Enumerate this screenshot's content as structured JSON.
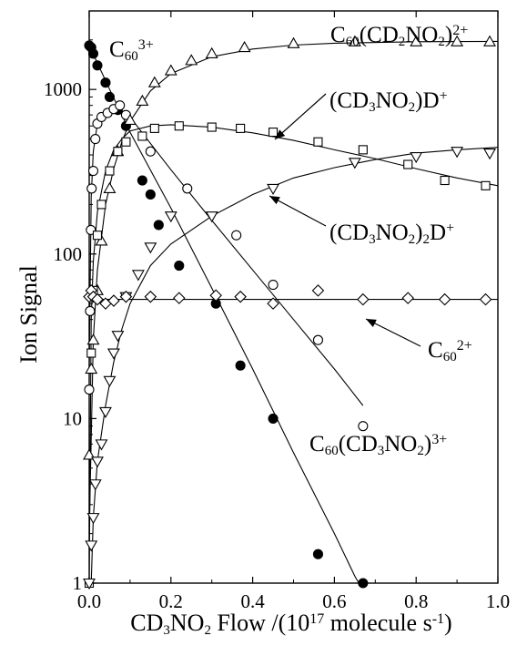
{
  "chart_data": {
    "type": "scatter",
    "title": "",
    "xlabel": "CD₃NO₂ Flow /(10¹⁷ molecule s⁻¹)",
    "ylabel": "Ion Signal",
    "xlim": [
      0,
      1.0
    ],
    "ylim": [
      1,
      3000
    ],
    "y_scale": "log",
    "grid": false,
    "x_ticks": [
      "0.0",
      "0.2",
      "0.4",
      "0.6",
      "0.8",
      "1.0"
    ],
    "y_ticks": [
      "1",
      "10",
      "100",
      "1000"
    ],
    "series": [
      {
        "name": "C60 3+",
        "marker": "filled-circle",
        "label_parts": [
          [
            "C",
            ""
          ],
          [
            "60",
            "sub"
          ],
          [
            "3+",
            "sup"
          ]
        ],
        "points": [
          [
            0.0,
            1850
          ],
          [
            0.005,
            1800
          ],
          [
            0.01,
            1650
          ],
          [
            0.02,
            1400
          ],
          [
            0.04,
            1100
          ],
          [
            0.05,
            900
          ],
          [
            0.07,
            750
          ],
          [
            0.09,
            600
          ],
          [
            0.13,
            280
          ],
          [
            0.15,
            230
          ],
          [
            0.17,
            150
          ],
          [
            0.22,
            85
          ],
          [
            0.31,
            50
          ],
          [
            0.37,
            21
          ],
          [
            0.45,
            10
          ],
          [
            0.56,
            1.5
          ],
          [
            0.67,
            1.0
          ]
        ],
        "fit": [
          [
            0.0,
            1850
          ],
          [
            0.05,
            1000
          ],
          [
            0.1,
            550
          ],
          [
            0.2,
            190
          ],
          [
            0.3,
            62
          ],
          [
            0.4,
            20
          ],
          [
            0.5,
            6.2
          ],
          [
            0.6,
            2.0
          ],
          [
            0.65,
            1.1
          ],
          [
            0.66,
            1.0
          ]
        ]
      },
      {
        "name": "C60(CD3NO2) 3+",
        "marker": "open-circle",
        "label_parts": [
          [
            "C",
            ""
          ],
          [
            "60",
            "sub"
          ],
          [
            "(CD",
            ""
          ],
          [
            "3",
            "sub"
          ],
          [
            "NO",
            ""
          ],
          [
            "2",
            "sub"
          ],
          [
            ")",
            ""
          ],
          [
            "3+",
            "sup"
          ]
        ],
        "points": [
          [
            0.0,
            15
          ],
          [
            0.002,
            45
          ],
          [
            0.004,
            140
          ],
          [
            0.006,
            250
          ],
          [
            0.01,
            320
          ],
          [
            0.015,
            500
          ],
          [
            0.02,
            620
          ],
          [
            0.03,
            680
          ],
          [
            0.045,
            720
          ],
          [
            0.06,
            760
          ],
          [
            0.075,
            800
          ],
          [
            0.09,
            700
          ],
          [
            0.15,
            420
          ],
          [
            0.24,
            250
          ],
          [
            0.36,
            130
          ],
          [
            0.45,
            65
          ],
          [
            0.56,
            30
          ],
          [
            0.67,
            9
          ]
        ],
        "fit": [
          [
            0.0,
            20
          ],
          [
            0.005,
            220
          ],
          [
            0.01,
            420
          ],
          [
            0.02,
            620
          ],
          [
            0.04,
            740
          ],
          [
            0.06,
            760
          ],
          [
            0.08,
            730
          ],
          [
            0.1,
            680
          ],
          [
            0.15,
            470
          ],
          [
            0.2,
            325
          ],
          [
            0.3,
            160
          ],
          [
            0.4,
            80
          ],
          [
            0.5,
            40
          ],
          [
            0.6,
            20
          ],
          [
            0.67,
            12
          ]
        ]
      },
      {
        "name": "C60(CD2NO2) 2+",
        "marker": "open-triangle-up",
        "label_parts": [
          [
            "C",
            ""
          ],
          [
            "60",
            "sub"
          ],
          [
            "(CD",
            ""
          ],
          [
            "2",
            "sub"
          ],
          [
            "NO",
            ""
          ],
          [
            "2",
            "sub"
          ],
          [
            ")",
            ""
          ],
          [
            "2+",
            "sup"
          ]
        ],
        "points": [
          [
            0.0,
            6
          ],
          [
            0.005,
            20
          ],
          [
            0.01,
            30
          ],
          [
            0.02,
            60
          ],
          [
            0.03,
            120
          ],
          [
            0.05,
            250
          ],
          [
            0.07,
            420
          ],
          [
            0.1,
            650
          ],
          [
            0.13,
            850
          ],
          [
            0.16,
            1100
          ],
          [
            0.2,
            1300
          ],
          [
            0.25,
            1500
          ],
          [
            0.3,
            1650
          ],
          [
            0.38,
            1800
          ],
          [
            0.5,
            1900
          ],
          [
            0.65,
            1950
          ],
          [
            0.8,
            1950
          ],
          [
            0.9,
            1950
          ],
          [
            0.98,
            1950
          ]
        ],
        "fit": [
          [
            0.0,
            2
          ],
          [
            0.01,
            30
          ],
          [
            0.02,
            80
          ],
          [
            0.04,
            200
          ],
          [
            0.06,
            330
          ],
          [
            0.08,
            480
          ],
          [
            0.1,
            640
          ],
          [
            0.15,
            980
          ],
          [
            0.2,
            1250
          ],
          [
            0.3,
            1580
          ],
          [
            0.4,
            1760
          ],
          [
            0.5,
            1860
          ],
          [
            0.6,
            1910
          ],
          [
            0.8,
            1950
          ],
          [
            1.0,
            1960
          ]
        ]
      },
      {
        "name": "(CD3NO2)D+",
        "marker": "open-square",
        "label_parts": [
          [
            "(CD",
            ""
          ],
          [
            "3",
            "sub"
          ],
          [
            "NO",
            ""
          ],
          [
            "2",
            "sub"
          ],
          [
            ")D",
            ""
          ],
          [
            "+",
            "sup"
          ]
        ],
        "points": [
          [
            0.0,
            1
          ],
          [
            0.005,
            25
          ],
          [
            0.01,
            60
          ],
          [
            0.02,
            130
          ],
          [
            0.03,
            200
          ],
          [
            0.05,
            320
          ],
          [
            0.07,
            420
          ],
          [
            0.09,
            480
          ],
          [
            0.13,
            520
          ],
          [
            0.16,
            580
          ],
          [
            0.22,
            600
          ],
          [
            0.3,
            590
          ],
          [
            0.37,
            580
          ],
          [
            0.45,
            550
          ],
          [
            0.56,
            480
          ],
          [
            0.67,
            430
          ],
          [
            0.78,
            350
          ],
          [
            0.87,
            280
          ],
          [
            0.97,
            260
          ]
        ],
        "fit": [
          [
            0.0,
            1
          ],
          [
            0.005,
            40
          ],
          [
            0.01,
            90
          ],
          [
            0.02,
            180
          ],
          [
            0.04,
            320
          ],
          [
            0.06,
            430
          ],
          [
            0.08,
            500
          ],
          [
            0.1,
            560
          ],
          [
            0.15,
            600
          ],
          [
            0.2,
            610
          ],
          [
            0.3,
            590
          ],
          [
            0.4,
            545
          ],
          [
            0.5,
            490
          ],
          [
            0.6,
            430
          ],
          [
            0.7,
            380
          ],
          [
            0.8,
            330
          ],
          [
            0.9,
            290
          ],
          [
            1.0,
            260
          ]
        ]
      },
      {
        "name": "(CD3NO2)2D+",
        "marker": "open-triangle-down",
        "label_parts": [
          [
            "(CD",
            ""
          ],
          [
            "3",
            "sub"
          ],
          [
            "NO",
            ""
          ],
          [
            "2",
            "sub"
          ],
          [
            ")",
            ""
          ],
          [
            "2",
            "sub"
          ],
          [
            "D",
            ""
          ],
          [
            "+",
            "sup"
          ]
        ],
        "points": [
          [
            0.0,
            1
          ],
          [
            0.005,
            1.7
          ],
          [
            0.01,
            2.5
          ],
          [
            0.015,
            4
          ],
          [
            0.02,
            5.5
          ],
          [
            0.03,
            7
          ],
          [
            0.04,
            11
          ],
          [
            0.05,
            17
          ],
          [
            0.06,
            25
          ],
          [
            0.07,
            32
          ],
          [
            0.09,
            55
          ],
          [
            0.12,
            75
          ],
          [
            0.15,
            110
          ],
          [
            0.2,
            170
          ],
          [
            0.3,
            170
          ],
          [
            0.45,
            250
          ],
          [
            0.65,
            360
          ],
          [
            0.8,
            390
          ],
          [
            0.9,
            420
          ],
          [
            0.98,
            410
          ]
        ],
        "fit": [
          [
            0.005,
            1
          ],
          [
            0.01,
            2.5
          ],
          [
            0.02,
            5.5
          ],
          [
            0.04,
            12
          ],
          [
            0.06,
            22
          ],
          [
            0.08,
            35
          ],
          [
            0.1,
            50
          ],
          [
            0.15,
            85
          ],
          [
            0.2,
            115
          ],
          [
            0.3,
            170
          ],
          [
            0.4,
            230
          ],
          [
            0.5,
            290
          ],
          [
            0.6,
            335
          ],
          [
            0.7,
            375
          ],
          [
            0.8,
            410
          ],
          [
            0.9,
            430
          ],
          [
            1.0,
            445
          ]
        ]
      },
      {
        "name": "C60 2+",
        "marker": "open-diamond",
        "label_parts": [
          [
            "C",
            ""
          ],
          [
            "60",
            "sub"
          ],
          [
            "2+",
            "sup"
          ]
        ],
        "points": [
          [
            0.0,
            55
          ],
          [
            0.005,
            60
          ],
          [
            0.01,
            55
          ],
          [
            0.02,
            53
          ],
          [
            0.04,
            50
          ],
          [
            0.06,
            52
          ],
          [
            0.09,
            55
          ],
          [
            0.15,
            55
          ],
          [
            0.22,
            54
          ],
          [
            0.31,
            56
          ],
          [
            0.37,
            55
          ],
          [
            0.45,
            50
          ],
          [
            0.56,
            60
          ],
          [
            0.67,
            53
          ],
          [
            0.78,
            54
          ],
          [
            0.87,
            53
          ],
          [
            0.97,
            53
          ]
        ],
        "fit": [
          [
            0.0,
            55
          ],
          [
            0.03,
            53
          ],
          [
            0.06,
            53
          ],
          [
            0.2,
            53
          ],
          [
            0.5,
            53
          ],
          [
            1.0,
            53
          ]
        ]
      }
    ]
  }
}
